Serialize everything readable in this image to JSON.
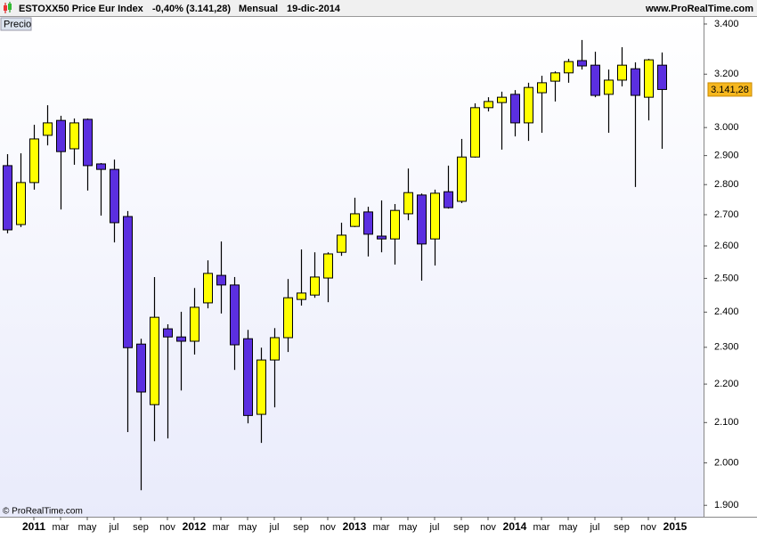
{
  "header": {
    "title": "ESTOXX50 Price Eur Index",
    "change": "-0,40% (3.141,28)",
    "period": "Mensual",
    "date": "19-dic-2014",
    "site": "www.ProRealTime.com"
  },
  "panel_label": "Precio",
  "copyright": "© ProRealTime.com",
  "chart_data": {
    "type": "candlestick",
    "log_scale": true,
    "up_color": "#ffff00",
    "down_color": "#5b2fe0",
    "open": [
      2865,
      2668,
      2807,
      2972,
      3026,
      2924,
      3030,
      2871,
      2852,
      2694,
      2309,
      2146,
      2352,
      2329,
      2317,
      2427,
      2509,
      2480,
      2324,
      2121,
      2265,
      2327,
      2437,
      2450,
      2501,
      2580,
      2662,
      2709,
      2631,
      2622,
      2703,
      2765,
      2622,
      2776,
      2744,
      2895,
      3073,
      3092,
      3123,
      3017,
      3129,
      3173,
      3205,
      3253,
      3235,
      3123,
      3177,
      3221,
      3112,
      3235
    ],
    "high": [
      2905,
      2908,
      3010,
      3082,
      3043,
      3033,
      3033,
      2874,
      2886,
      2712,
      2324,
      2504,
      2365,
      2401,
      2471,
      2555,
      2614,
      2504,
      2349,
      2299,
      2354,
      2498,
      2589,
      2580,
      2580,
      2674,
      2756,
      2726,
      2747,
      2735,
      2855,
      2770,
      2783,
      2865,
      2959,
      3089,
      3112,
      3133,
      3139,
      3167,
      3194,
      3211,
      3260,
      3335,
      3288,
      3218,
      3306,
      3246,
      3260,
      3285
    ],
    "low": [
      2640,
      2660,
      2783,
      2936,
      2717,
      2868,
      2780,
      2697,
      2611,
      2076,
      1935,
      2053,
      2060,
      2183,
      2280,
      2411,
      2396,
      2238,
      2098,
      2049,
      2139,
      2287,
      2419,
      2442,
      2429,
      2569,
      2660,
      2567,
      2580,
      2542,
      2682,
      2493,
      2539,
      2720,
      2738,
      2893,
      3059,
      2921,
      2968,
      2952,
      2981,
      3096,
      3167,
      3218,
      3112,
      2981,
      3153,
      2792,
      3026,
      2924
    ],
    "close": [
      2651,
      2807,
      2959,
      3017,
      2914,
      3017,
      2865,
      2852,
      2674,
      2299,
      2179,
      2385,
      2329,
      2317,
      2414,
      2515,
      2480,
      2307,
      2118,
      2265,
      2327,
      2442,
      2456,
      2504,
      2575,
      2634,
      2703,
      2637,
      2622,
      2714,
      2773,
      2606,
      2771,
      2723,
      2895,
      3073,
      3096,
      3112,
      3017,
      3149,
      3167,
      3205,
      3249,
      3232,
      3119,
      3177,
      3235,
      3119,
      3256,
      3141.28
    ],
    "last_price_label": "3.141,28",
    "ylim": [
      1874,
      3433
    ],
    "yticks": [
      {
        "value": 1900,
        "label": "1.900"
      },
      {
        "value": 2000,
        "label": "2.000"
      },
      {
        "value": 2100,
        "label": "2.100"
      },
      {
        "value": 2200,
        "label": "2.200"
      },
      {
        "value": 2300,
        "label": "2.300"
      },
      {
        "value": 2400,
        "label": "2.400"
      },
      {
        "value": 2500,
        "label": "2.500"
      },
      {
        "value": 2600,
        "label": "2.600"
      },
      {
        "value": 2700,
        "label": "2.700"
      },
      {
        "value": 2800,
        "label": "2.800"
      },
      {
        "value": 2900,
        "label": "2.900"
      },
      {
        "value": 3000,
        "label": "3.000"
      },
      {
        "value": 3200,
        "label": "3.200"
      },
      {
        "value": 3400,
        "label": "3.400"
      }
    ],
    "xticks": [
      {
        "value": 2,
        "label": "2011"
      },
      {
        "value": 4,
        "label": "mar"
      },
      {
        "value": 6,
        "label": "may"
      },
      {
        "value": 8,
        "label": "jul"
      },
      {
        "value": 10,
        "label": "sep"
      },
      {
        "value": 12,
        "label": "nov"
      },
      {
        "value": 14,
        "label": "2012"
      },
      {
        "value": 16,
        "label": "mar"
      },
      {
        "value": 18,
        "label": "may"
      },
      {
        "value": 20,
        "label": "jul"
      },
      {
        "value": 22,
        "label": "sep"
      },
      {
        "value": 24,
        "label": "nov"
      },
      {
        "value": 26,
        "label": "2013"
      },
      {
        "value": 28,
        "label": "mar"
      },
      {
        "value": 30,
        "label": "may"
      },
      {
        "value": 32,
        "label": "jul"
      },
      {
        "value": 34,
        "label": "sep"
      },
      {
        "value": 36,
        "label": "nov"
      },
      {
        "value": 38,
        "label": "2014"
      },
      {
        "value": 40,
        "label": "mar"
      },
      {
        "value": 42,
        "label": "may"
      },
      {
        "value": 44,
        "label": "jul"
      },
      {
        "value": 46,
        "label": "sep"
      },
      {
        "value": 48,
        "label": "nov"
      },
      {
        "value": 50,
        "label": "2015"
      }
    ]
  }
}
